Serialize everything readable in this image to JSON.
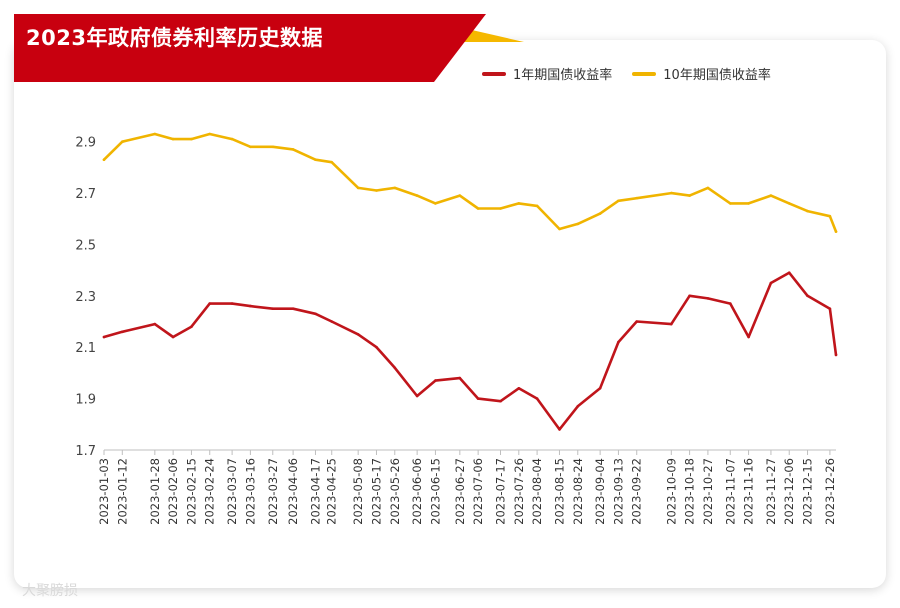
{
  "title": "2023年政府债券利率历史数据",
  "watermark": "大聚膀损",
  "colors": {
    "brand_red": "#c8000f",
    "accent_gold": "#f5b800",
    "series_1y": "#c0151b",
    "series_10y": "#f0b400"
  },
  "chart_data": {
    "type": "line",
    "title": "2023年政府债券利率历史数据",
    "xlabel": "",
    "ylabel": "",
    "ylim": [
      1.7,
      3.0
    ],
    "yticks": [
      "1.7",
      "1.9",
      "2.1",
      "2.3",
      "2.5",
      "2.7",
      "2.9"
    ],
    "grid": false,
    "legend_position": "top-right",
    "xticks": [
      "2023-01-03",
      "2023-01-12",
      "2023-01-28",
      "2023-02-06",
      "2023-02-15",
      "2023-02-24",
      "2023-03-07",
      "2023-03-16",
      "2023-03-27",
      "2023-04-06",
      "2023-04-17",
      "2023-04-25",
      "2023-05-08",
      "2023-05-17",
      "2023-05-26",
      "2023-06-06",
      "2023-06-15",
      "2023-06-27",
      "2023-07-06",
      "2023-07-17",
      "2023-07-26",
      "2023-08-04",
      "2023-08-15",
      "2023-08-24",
      "2023-09-04",
      "2023-09-13",
      "2023-09-22",
      "2023-10-09",
      "2023-10-18",
      "2023-10-27",
      "2023-11-07",
      "2023-11-16",
      "2023-11-27",
      "2023-12-06",
      "2023-12-15",
      "2023-12-26"
    ],
    "series": [
      {
        "name": "1年期国债收益率",
        "color": "#c0151b",
        "x": [
          "2023-01-03",
          "2023-01-12",
          "2023-01-28",
          "2023-02-06",
          "2023-02-15",
          "2023-02-24",
          "2023-03-07",
          "2023-03-16",
          "2023-03-27",
          "2023-04-06",
          "2023-04-17",
          "2023-04-25",
          "2023-05-08",
          "2023-05-17",
          "2023-05-26",
          "2023-06-06",
          "2023-06-15",
          "2023-06-27",
          "2023-07-06",
          "2023-07-17",
          "2023-07-26",
          "2023-08-04",
          "2023-08-15",
          "2023-08-24",
          "2023-09-04",
          "2023-09-13",
          "2023-09-22",
          "2023-10-09",
          "2023-10-18",
          "2023-10-27",
          "2023-11-07",
          "2023-11-16",
          "2023-11-27",
          "2023-12-06",
          "2023-12-15",
          "2023-12-26",
          "2023-12-29"
        ],
        "values": [
          2.14,
          2.16,
          2.19,
          2.14,
          2.18,
          2.27,
          2.27,
          2.26,
          2.25,
          2.25,
          2.23,
          2.2,
          2.15,
          2.1,
          2.02,
          1.91,
          1.97,
          1.98,
          1.9,
          1.89,
          1.94,
          1.9,
          1.78,
          1.87,
          1.94,
          2.12,
          2.2,
          2.19,
          2.3,
          2.29,
          2.27,
          2.14,
          2.35,
          2.39,
          2.3,
          2.25,
          2.07
        ]
      },
      {
        "name": "10年期国债收益率",
        "color": "#f0b400",
        "x": [
          "2023-01-03",
          "2023-01-12",
          "2023-01-28",
          "2023-02-06",
          "2023-02-15",
          "2023-02-24",
          "2023-03-07",
          "2023-03-16",
          "2023-03-27",
          "2023-04-06",
          "2023-04-17",
          "2023-04-25",
          "2023-05-08",
          "2023-05-17",
          "2023-05-26",
          "2023-06-06",
          "2023-06-15",
          "2023-06-27",
          "2023-07-06",
          "2023-07-17",
          "2023-07-26",
          "2023-08-04",
          "2023-08-15",
          "2023-08-24",
          "2023-09-04",
          "2023-09-13",
          "2023-09-22",
          "2023-10-09",
          "2023-10-18",
          "2023-10-27",
          "2023-11-07",
          "2023-11-16",
          "2023-11-27",
          "2023-12-06",
          "2023-12-15",
          "2023-12-26",
          "2023-12-29"
        ],
        "values": [
          2.83,
          2.9,
          2.93,
          2.91,
          2.91,
          2.93,
          2.91,
          2.88,
          2.88,
          2.87,
          2.83,
          2.82,
          2.72,
          2.71,
          2.72,
          2.69,
          2.66,
          2.69,
          2.64,
          2.64,
          2.66,
          2.65,
          2.56,
          2.58,
          2.62,
          2.67,
          2.68,
          2.7,
          2.69,
          2.72,
          2.66,
          2.66,
          2.69,
          2.66,
          2.63,
          2.61,
          2.55
        ]
      }
    ]
  }
}
